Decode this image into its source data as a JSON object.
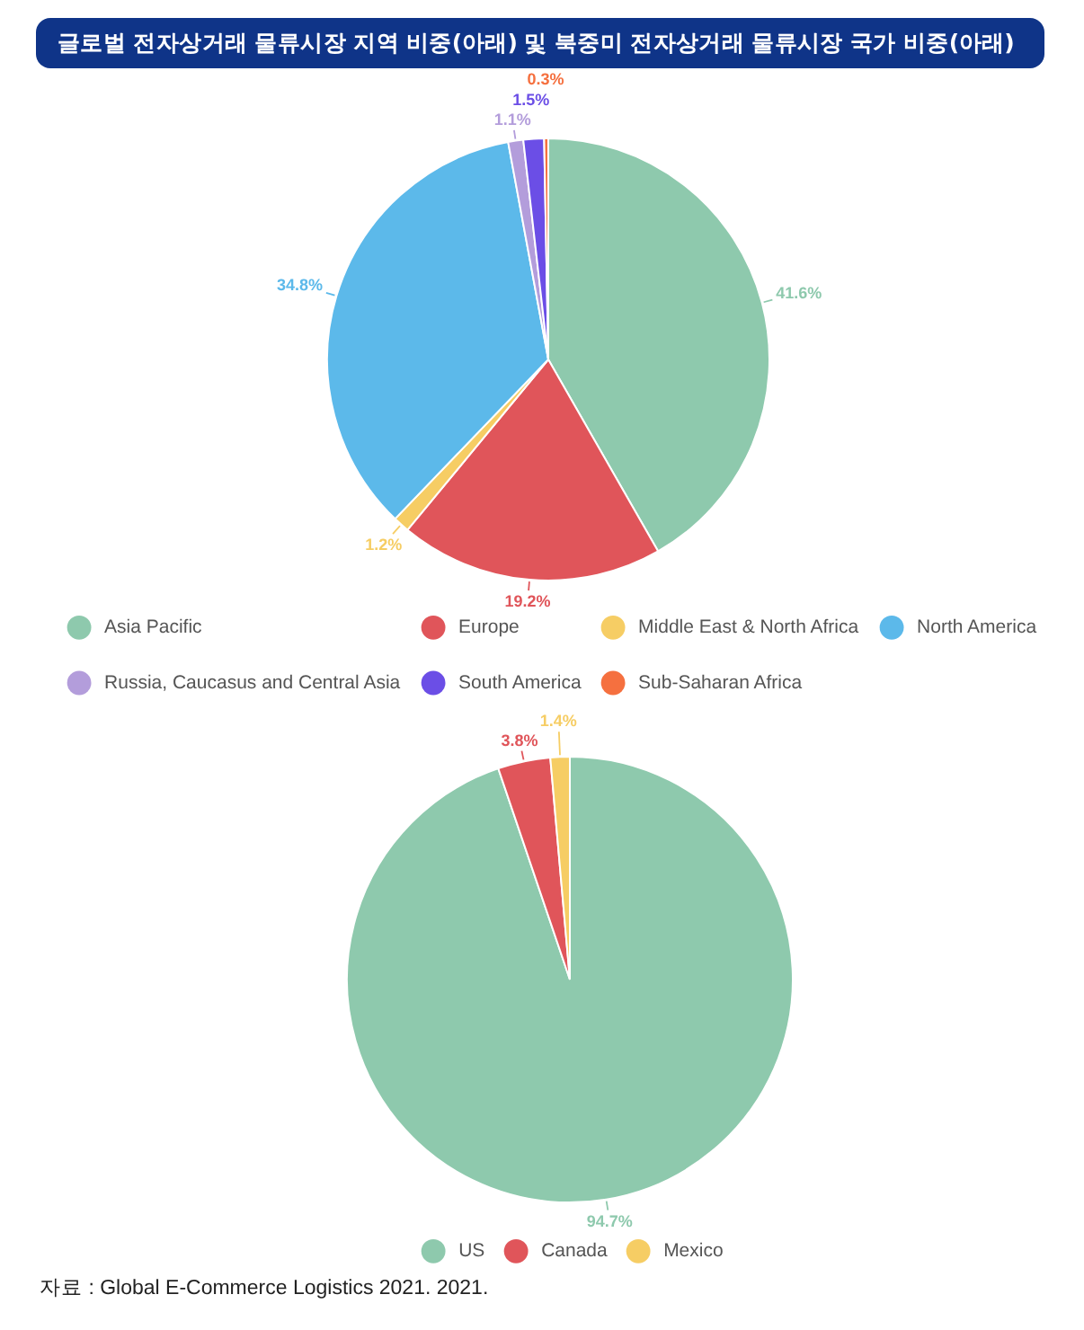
{
  "chart_data": [
    {
      "type": "pie",
      "title": "글로벌 전자상거래 물류시장 지역 비중(아래) 및 북중미 전자상거래 물류시장 국가 비중(아래)",
      "categories": [
        "Asia Pacific",
        "Europe",
        "Middle East & North Africa",
        "North America",
        "Russia, Caucasus and Central Asia",
        "South America",
        "Sub-Saharan Africa"
      ],
      "values": [
        41.6,
        19.2,
        1.2,
        34.8,
        1.1,
        1.5,
        0.3
      ],
      "colors": [
        "#8ec9ad",
        "#e0555a",
        "#f6cd64",
        "#5cb9ea",
        "#b39ddb",
        "#6b4ee6",
        "#f5703f"
      ],
      "value_labels": [
        "41.6%",
        "19.2%",
        "1.2%",
        "34.8%",
        "1.1%",
        "1.5%",
        "0.3%"
      ],
      "legend": "bottom"
    },
    {
      "type": "pie",
      "categories": [
        "US",
        "Canada",
        "Mexico"
      ],
      "values": [
        94.7,
        3.8,
        1.4
      ],
      "colors": [
        "#8ec9ad",
        "#e0555a",
        "#f6cd64"
      ],
      "value_labels": [
        "94.7%",
        "3.8%",
        "1.4%"
      ],
      "legend": "bottom",
      "annotations": [
        "자료 : Global E-Commerce Logistics 2021. 2021."
      ]
    }
  ]
}
